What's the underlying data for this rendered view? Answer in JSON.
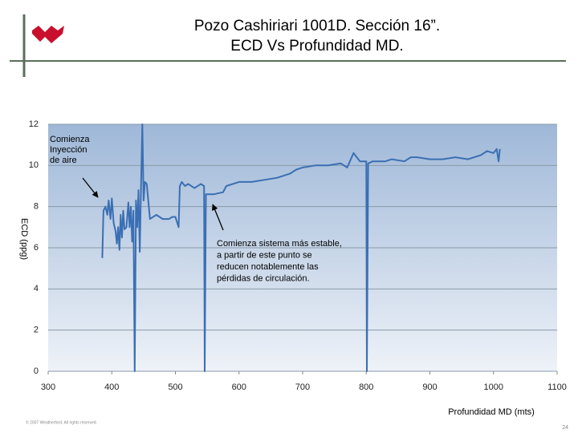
{
  "chart_data": {
    "type": "line",
    "title": [
      "Pozo Cashiriari 1001D. Sección 16”.",
      "ECD Vs Profundidad MD."
    ],
    "y_label": "ECD (ppg)",
    "x_label": "Profundidad MD (mts)",
    "annotations": [
      [
        "Comienza",
        "Inyección",
        "de aire"
      ],
      [
        "Comienza sistema más estable,",
        "a partir de este punto se",
        "reducen notablemente  las",
        "pérdidas de circulación."
      ]
    ],
    "footer": "© 2007 Weatherford. All rights reserved.",
    "page_number": "24",
    "color": "#3b6fb3",
    "grid": true,
    "xlim": [
      300,
      1100
    ],
    "xticks": [
      300,
      400,
      500,
      600,
      700,
      800,
      900,
      1000,
      1100
    ],
    "ylim": [
      0,
      12
    ],
    "yticks": [
      0,
      2,
      4,
      6,
      8,
      10,
      12
    ],
    "x": [
      385,
      387,
      390,
      393,
      395,
      398,
      400,
      403,
      406,
      408,
      410,
      412,
      414,
      416,
      418,
      420,
      423,
      426,
      428,
      430,
      432,
      434,
      436,
      438,
      440,
      442,
      444,
      446,
      448,
      450,
      452,
      455,
      460,
      470,
      480,
      490,
      495,
      500,
      505,
      507,
      510,
      515,
      520,
      530,
      540,
      545,
      546,
      548,
      560,
      575,
      580,
      600,
      620,
      640,
      660,
      680,
      690,
      700,
      720,
      740,
      760,
      770,
      780,
      790,
      800,
      801,
      803,
      810,
      830,
      840,
      860,
      870,
      880,
      900,
      920,
      940,
      960,
      980,
      990,
      1000,
      1005,
      1008,
      1010
    ],
    "values": [
      5.5,
      7.8,
      8.0,
      7.6,
      8.3,
      7.4,
      8.4,
      7.2,
      6.8,
      6.2,
      7.0,
      5.9,
      7.6,
      6.5,
      7.8,
      6.9,
      7.0,
      8.2,
      7.0,
      8.0,
      6.3,
      7.8,
      0,
      8.3,
      7.0,
      8.8,
      5.8,
      9.0,
      12,
      8.3,
      9.2,
      9.1,
      7.4,
      7.6,
      7.4,
      7.4,
      7.5,
      7.5,
      7.0,
      9.0,
      9.2,
      9.0,
      9.1,
      8.9,
      9.1,
      9.0,
      0,
      8.6,
      8.6,
      8.7,
      9.0,
      9.2,
      9.2,
      9.3,
      9.4,
      9.6,
      9.8,
      9.9,
      10.0,
      10.0,
      10.1,
      9.9,
      10.6,
      10.2,
      10.2,
      0,
      10.1,
      10.2,
      10.2,
      10.3,
      10.2,
      10.4,
      10.4,
      10.3,
      10.3,
      10.4,
      10.3,
      10.5,
      10.7,
      10.6,
      10.8,
      10.2,
      10.8
    ]
  }
}
